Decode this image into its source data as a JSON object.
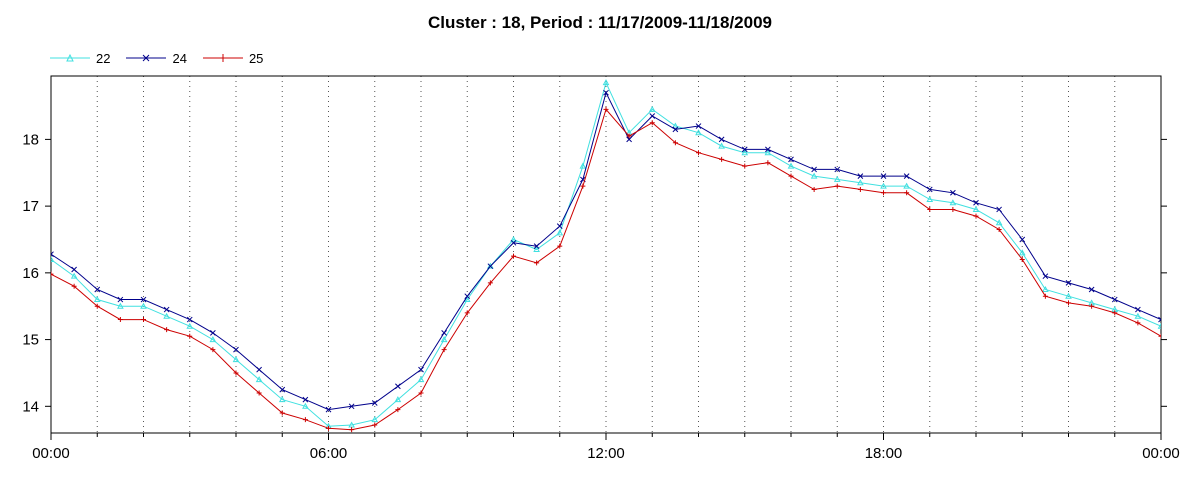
{
  "chart_data": {
    "type": "line",
    "title": "Cluster : 18, Period : 11/17/2009-11/18/2009",
    "xlabel": "",
    "ylabel": "",
    "x_ticks": [
      "00:00",
      "06:00",
      "12:00",
      "18:00",
      "00:00"
    ],
    "y_ticks": [
      "14",
      "15",
      "16",
      "17",
      "18"
    ],
    "ylim": [
      13.6,
      18.95
    ],
    "xlim_hours": [
      0,
      24
    ],
    "grid": "dotted vertical lines every hour",
    "legend_position": "top-left",
    "series": [
      {
        "name": "22",
        "color": "#40e0e0",
        "marker": "triangle",
        "points": [
          [
            0,
            16.2
          ],
          [
            0.5,
            15.95
          ],
          [
            1,
            15.6
          ],
          [
            1.5,
            15.5
          ],
          [
            2,
            15.5
          ],
          [
            2.5,
            15.35
          ],
          [
            3,
            15.2
          ],
          [
            3.5,
            15.0
          ],
          [
            4,
            14.7
          ],
          [
            4.5,
            14.4
          ],
          [
            5,
            14.1
          ],
          [
            5.5,
            14.0
          ],
          [
            6,
            13.7
          ],
          [
            6.5,
            13.72
          ],
          [
            7,
            13.8
          ],
          [
            7.5,
            14.1
          ],
          [
            8,
            14.4
          ],
          [
            8.5,
            15.0
          ],
          [
            9,
            15.6
          ],
          [
            9.5,
            16.1
          ],
          [
            10,
            16.5
          ],
          [
            10.5,
            16.35
          ],
          [
            11,
            16.6
          ],
          [
            11.5,
            17.6
          ],
          [
            12,
            18.85
          ],
          [
            12.5,
            18.1
          ],
          [
            13,
            18.45
          ],
          [
            13.5,
            18.2
          ],
          [
            14,
            18.1
          ],
          [
            14.5,
            17.9
          ],
          [
            15,
            17.8
          ],
          [
            15.5,
            17.8
          ],
          [
            16,
            17.6
          ],
          [
            16.5,
            17.45
          ],
          [
            17,
            17.4
          ],
          [
            17.5,
            17.35
          ],
          [
            18,
            17.3
          ],
          [
            18.5,
            17.3
          ],
          [
            19,
            17.1
          ],
          [
            19.5,
            17.05
          ],
          [
            20,
            16.95
          ],
          [
            20.5,
            16.75
          ],
          [
            21,
            16.3
          ],
          [
            21.5,
            15.75
          ],
          [
            22,
            15.65
          ],
          [
            22.5,
            15.55
          ],
          [
            23,
            15.45
          ],
          [
            23.5,
            15.35
          ],
          [
            24,
            15.2
          ]
        ]
      },
      {
        "name": "24",
        "color": "#00008b",
        "marker": "x",
        "points": [
          [
            0,
            16.28
          ],
          [
            0.5,
            16.05
          ],
          [
            1,
            15.75
          ],
          [
            1.5,
            15.6
          ],
          [
            2,
            15.6
          ],
          [
            2.5,
            15.45
          ],
          [
            3,
            15.3
          ],
          [
            3.5,
            15.1
          ],
          [
            4,
            14.85
          ],
          [
            4.5,
            14.55
          ],
          [
            5,
            14.25
          ],
          [
            5.5,
            14.1
          ],
          [
            6,
            13.95
          ],
          [
            6.5,
            14.0
          ],
          [
            7,
            14.05
          ],
          [
            7.5,
            14.3
          ],
          [
            8,
            14.55
          ],
          [
            8.5,
            15.1
          ],
          [
            9,
            15.65
          ],
          [
            9.5,
            16.1
          ],
          [
            10,
            16.45
          ],
          [
            10.5,
            16.4
          ],
          [
            11,
            16.7
          ],
          [
            11.5,
            17.4
          ],
          [
            12,
            18.7
          ],
          [
            12.5,
            18.0
          ],
          [
            13,
            18.35
          ],
          [
            13.5,
            18.15
          ],
          [
            14,
            18.2
          ],
          [
            14.5,
            18.0
          ],
          [
            15,
            17.85
          ],
          [
            15.5,
            17.85
          ],
          [
            16,
            17.7
          ],
          [
            16.5,
            17.55
          ],
          [
            17,
            17.55
          ],
          [
            17.5,
            17.45
          ],
          [
            18,
            17.45
          ],
          [
            18.5,
            17.45
          ],
          [
            19,
            17.25
          ],
          [
            19.5,
            17.2
          ],
          [
            20,
            17.05
          ],
          [
            20.5,
            16.95
          ],
          [
            21,
            16.5
          ],
          [
            21.5,
            15.95
          ],
          [
            22,
            15.85
          ],
          [
            22.5,
            15.75
          ],
          [
            23,
            15.6
          ],
          [
            23.5,
            15.45
          ],
          [
            24,
            15.3
          ]
        ]
      },
      {
        "name": "25",
        "color": "#cc0000",
        "marker": "plus",
        "points": [
          [
            0,
            15.98
          ],
          [
            0.5,
            15.8
          ],
          [
            1,
            15.5
          ],
          [
            1.5,
            15.3
          ],
          [
            2,
            15.3
          ],
          [
            2.5,
            15.15
          ],
          [
            3,
            15.05
          ],
          [
            3.5,
            14.85
          ],
          [
            4,
            14.5
          ],
          [
            4.5,
            14.2
          ],
          [
            5,
            13.9
          ],
          [
            5.5,
            13.8
          ],
          [
            6,
            13.67
          ],
          [
            6.5,
            13.65
          ],
          [
            7,
            13.72
          ],
          [
            7.5,
            13.95
          ],
          [
            8,
            14.2
          ],
          [
            8.5,
            14.85
          ],
          [
            9,
            15.4
          ],
          [
            9.5,
            15.85
          ],
          [
            10,
            16.25
          ],
          [
            10.5,
            16.15
          ],
          [
            11,
            16.4
          ],
          [
            11.5,
            17.3
          ],
          [
            12,
            18.45
          ],
          [
            12.5,
            18.05
          ],
          [
            13,
            18.25
          ],
          [
            13.5,
            17.95
          ],
          [
            14,
            17.8
          ],
          [
            14.5,
            17.7
          ],
          [
            15,
            17.6
          ],
          [
            15.5,
            17.65
          ],
          [
            16,
            17.45
          ],
          [
            16.5,
            17.25
          ],
          [
            17,
            17.3
          ],
          [
            17.5,
            17.25
          ],
          [
            18,
            17.2
          ],
          [
            18.5,
            17.2
          ],
          [
            19,
            16.95
          ],
          [
            19.5,
            16.95
          ],
          [
            20,
            16.85
          ],
          [
            20.5,
            16.65
          ],
          [
            21,
            16.2
          ],
          [
            21.5,
            15.65
          ],
          [
            22,
            15.55
          ],
          [
            22.5,
            15.5
          ],
          [
            23,
            15.4
          ],
          [
            23.5,
            15.25
          ],
          [
            24,
            15.05
          ]
        ]
      }
    ]
  }
}
